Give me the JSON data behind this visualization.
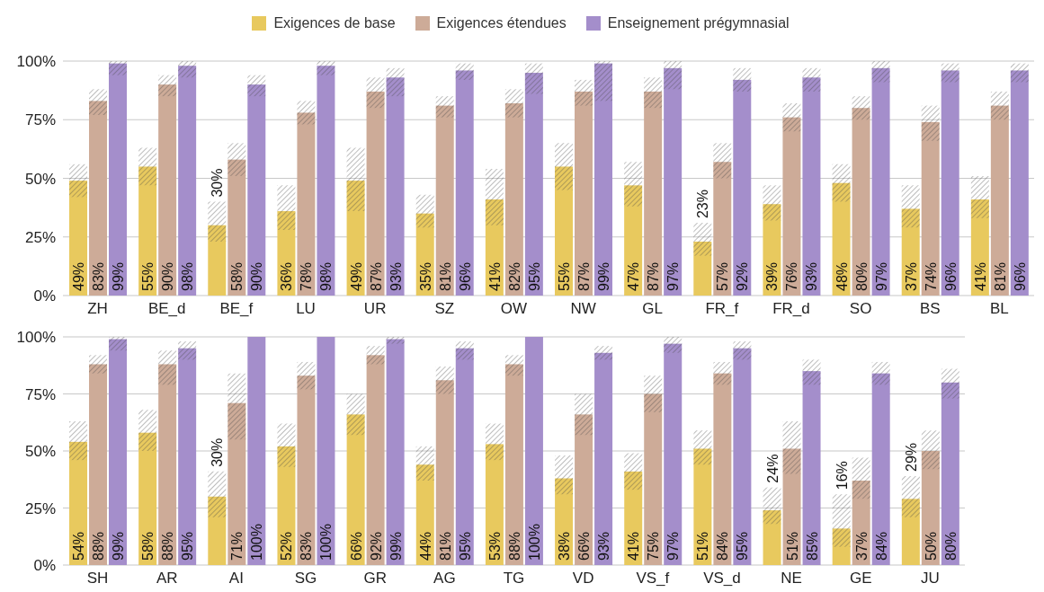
{
  "chart_data": [
    {
      "type": "bar",
      "categories": [
        "ZH",
        "BE_d",
        "BE_f",
        "LU",
        "UR",
        "SZ",
        "OW",
        "NW",
        "GL",
        "FR_f",
        "FR_d",
        "SO",
        "BS",
        "BL"
      ],
      "ylim": [
        0,
        100
      ],
      "yticks": [
        {
          "value": 0,
          "label": "0%"
        },
        {
          "value": 25,
          "label": "25%"
        },
        {
          "value": 50,
          "label": "50%"
        },
        {
          "value": 75,
          "label": "75%"
        },
        {
          "value": 100,
          "label": "100%"
        }
      ],
      "grid": "y",
      "legend": "top",
      "series": [
        {
          "name": "Exigences de base",
          "color": "#e8c95e",
          "values": [
            49,
            55,
            30,
            36,
            49,
            35,
            41,
            55,
            47,
            23,
            39,
            48,
            37,
            41
          ],
          "value_labels": [
            "49%",
            "55%",
            "30%",
            "36%",
            "49%",
            "35%",
            "41%",
            "55%",
            "47%",
            "23%",
            "39%",
            "48%",
            "37%",
            "41%"
          ],
          "errors": [
            [
              42,
              56
            ],
            [
              47,
              63
            ],
            [
              23,
              40
            ],
            [
              28,
              47
            ],
            [
              36,
              63
            ],
            [
              29,
              43
            ],
            [
              30,
              54
            ],
            [
              45,
              65
            ],
            [
              38,
              57
            ],
            [
              17,
              31
            ],
            [
              32,
              47
            ],
            [
              40,
              56
            ],
            [
              29,
              47
            ],
            [
              33,
              51
            ]
          ]
        },
        {
          "name": "Exigences étendues",
          "color": "#cdab98",
          "values": [
            83,
            90,
            58,
            78,
            87,
            81,
            82,
            87,
            87,
            57,
            76,
            80,
            74,
            81
          ],
          "value_labels": [
            "83%",
            "90%",
            "58%",
            "78%",
            "87%",
            "81%",
            "82%",
            "87%",
            "87%",
            "57%",
            "76%",
            "80%",
            "74%",
            "81%"
          ],
          "errors": [
            [
              77,
              88
            ],
            [
              85,
              94
            ],
            [
              51,
              65
            ],
            [
              73,
              83
            ],
            [
              80,
              93
            ],
            [
              76,
              85
            ],
            [
              76,
              88
            ],
            [
              81,
              92
            ],
            [
              80,
              93
            ],
            [
              50,
              65
            ],
            [
              70,
              82
            ],
            [
              75,
              85
            ],
            [
              66,
              81
            ],
            [
              75,
              87
            ]
          ]
        },
        {
          "name": "Enseignement prégymnasial",
          "color": "#a48ecb",
          "values": [
            99,
            98,
            90,
            98,
            93,
            96,
            95,
            99,
            97,
            92,
            93,
            97,
            96,
            96
          ],
          "value_labels": [
            "99%",
            "98%",
            "90%",
            "98%",
            "93%",
            "96%",
            "95%",
            "99%",
            "97%",
            "92%",
            "93%",
            "97%",
            "96%",
            "96%"
          ],
          "errors": [
            [
              94,
              100
            ],
            [
              93,
              100
            ],
            [
              85,
              94
            ],
            [
              94,
              100
            ],
            [
              85,
              97
            ],
            [
              92,
              99
            ],
            [
              86,
              99
            ],
            [
              83,
              100
            ],
            [
              88,
              100
            ],
            [
              87,
              97
            ],
            [
              87,
              97
            ],
            [
              91,
              100
            ],
            [
              91,
              99
            ],
            [
              91,
              99
            ]
          ]
        }
      ]
    },
    {
      "type": "bar",
      "categories": [
        "SH",
        "AR",
        "AI",
        "SG",
        "GR",
        "AG",
        "TG",
        "VD",
        "VS_f",
        "VS_d",
        "NE",
        "GE",
        "JU"
      ],
      "ylim": [
        0,
        100
      ],
      "yticks": [
        {
          "value": 0,
          "label": "0%"
        },
        {
          "value": 25,
          "label": "25%"
        },
        {
          "value": 50,
          "label": "50%"
        },
        {
          "value": 75,
          "label": "75%"
        },
        {
          "value": 100,
          "label": "100%"
        }
      ],
      "grid": "y",
      "series": [
        {
          "color": "#e8c95e",
          "values": [
            54,
            58,
            30,
            52,
            66,
            44,
            53,
            38,
            41,
            51,
            24,
            16,
            29
          ],
          "value_labels": [
            "54%",
            "58%",
            "30%",
            "52%",
            "66%",
            "44%",
            "53%",
            "38%",
            "41%",
            "51%",
            "24%",
            "16%",
            "29%"
          ],
          "errors": [
            [
              46,
              63
            ],
            [
              50,
              68
            ],
            [
              21,
              41
            ],
            [
              43,
              62
            ],
            [
              57,
              75
            ],
            [
              37,
              52
            ],
            [
              46,
              62
            ],
            [
              31,
              48
            ],
            [
              33,
              49
            ],
            [
              44,
              59
            ],
            [
              18,
              34
            ],
            [
              8,
              31
            ],
            [
              21,
              39
            ]
          ]
        },
        {
          "color": "#cdab98",
          "values": [
            88,
            88,
            71,
            83,
            92,
            81,
            88,
            66,
            75,
            84,
            51,
            37,
            50
          ],
          "value_labels": [
            "88%",
            "88%",
            "71%",
            "83%",
            "92%",
            "81%",
            "88%",
            "66%",
            "75%",
            "84%",
            "51%",
            "37%",
            "50%"
          ],
          "errors": [
            [
              84,
              92
            ],
            [
              79,
              94
            ],
            [
              55,
              84
            ],
            [
              77,
              89
            ],
            [
              88,
              96
            ],
            [
              75,
              87
            ],
            [
              83,
              92
            ],
            [
              57,
              75
            ],
            [
              67,
              83
            ],
            [
              79,
              89
            ],
            [
              40,
              63
            ],
            [
              29,
              47
            ],
            [
              42,
              59
            ]
          ]
        },
        {
          "color": "#a48ecb",
          "values": [
            99,
            95,
            100,
            100,
            99,
            95,
            100,
            93,
            97,
            95,
            85,
            84,
            80
          ],
          "value_labels": [
            "99%",
            "95%",
            "100%",
            "100%",
            "99%",
            "95%",
            "100%",
            "93%",
            "97%",
            "95%",
            "85%",
            "84%",
            "80%"
          ],
          "errors": [
            [
              94,
              100
            ],
            [
              90,
              98
            ],
            null,
            null,
            [
              97,
              100
            ],
            [
              90,
              98
            ],
            null,
            [
              90,
              96
            ],
            [
              93,
              100
            ],
            [
              90,
              98
            ],
            [
              79,
              90
            ],
            [
              79,
              89
            ],
            [
              73,
              86
            ]
          ]
        }
      ]
    }
  ]
}
